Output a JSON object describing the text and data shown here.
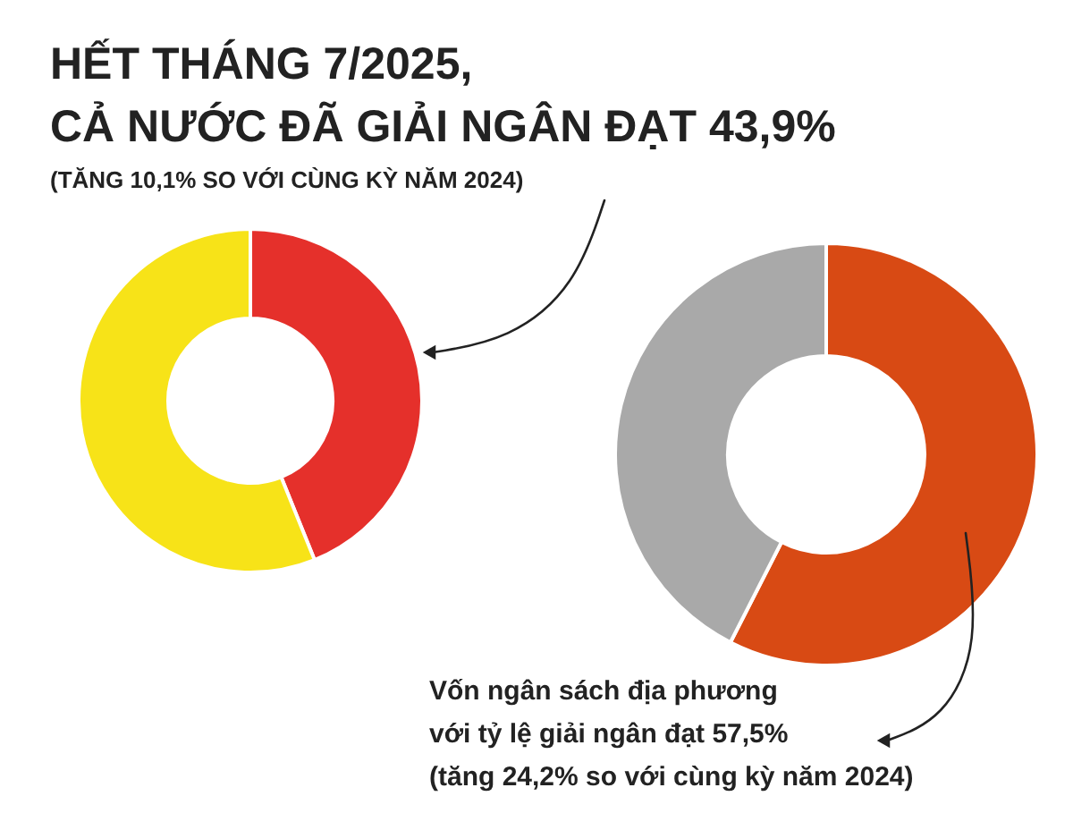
{
  "chart_data": [
    {
      "type": "donut",
      "title": "HẾT THÁNG 7/2025,\nCẢ NƯỚC ĐÃ GIẢI NGÂN ĐẠT 43,9%",
      "subtitle": "(TĂNG 10,1% SO VỚI CÙNG KỲ NĂM 2024)",
      "categories": [
        null,
        null
      ],
      "values": [
        43.9,
        56.1
      ],
      "colors": [
        "#e5302b",
        "#f7e318"
      ]
    },
    {
      "type": "donut",
      "categories": [
        null,
        null
      ],
      "values": [
        57.5,
        42.5
      ],
      "colors": [
        "#d84a14",
        "#a9a9a9"
      ],
      "annotations": [
        "Vốn ngân sách địa phương",
        "với tỷ lệ giải ngân đạt 57,5%",
        "(tăng 24,2% so với cùng kỳ năm 2024)"
      ]
    }
  ]
}
